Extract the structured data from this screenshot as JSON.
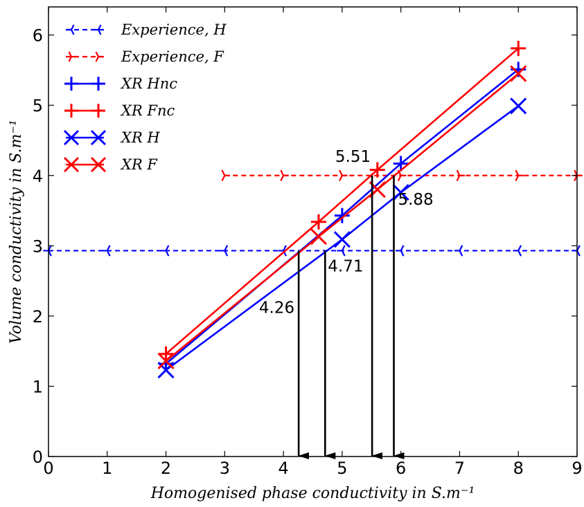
{
  "chart_data": {
    "type": "line",
    "xlabel": "Homogenised phase conductivity in S.m⁻¹",
    "ylabel": "Volume conductivity in S.m⁻¹",
    "xlim": [
      0,
      9
    ],
    "ylim": [
      0,
      6.4
    ],
    "xticks": [
      0,
      1,
      2,
      3,
      4,
      5,
      6,
      7,
      8,
      9
    ],
    "yticks": [
      0,
      1,
      2,
      3,
      4,
      5,
      6
    ],
    "grid": false,
    "legend_position": "top-left",
    "series": [
      {
        "name": "Experience, H",
        "color": "#0000ff",
        "style": "dashed",
        "marker": "tri-left",
        "x": [
          0,
          1,
          2,
          3,
          4,
          5,
          6,
          7,
          8,
          9
        ],
        "y": [
          2.93,
          2.93,
          2.93,
          2.93,
          2.93,
          2.93,
          2.93,
          2.93,
          2.93,
          2.93
        ]
      },
      {
        "name": "Experience, F",
        "color": "#ff0000",
        "style": "dashed",
        "marker": "tri-right",
        "x": [
          3,
          4,
          5,
          6,
          7,
          8,
          9
        ],
        "y": [
          4.0,
          4.0,
          4.0,
          4.0,
          4.0,
          4.0,
          4.0
        ]
      },
      {
        "name": "XR Hnc",
        "color": "#0000ff",
        "style": "solid",
        "marker": "plus",
        "x": [
          2,
          5,
          6,
          8
        ],
        "y": [
          1.32,
          3.43,
          4.17,
          5.51
        ]
      },
      {
        "name": "XR Fnc",
        "color": "#ff0000",
        "style": "solid",
        "marker": "plus",
        "x": [
          2,
          4.6,
          5.6,
          8
        ],
        "y": [
          1.46,
          3.34,
          4.08,
          5.81
        ]
      },
      {
        "name": "XR H",
        "color": "#0000ff",
        "style": "solid",
        "marker": "x",
        "x": [
          2,
          5,
          6,
          8
        ],
        "y": [
          1.23,
          3.09,
          3.76,
          4.99
        ]
      },
      {
        "name": "XR F",
        "color": "#ff0000",
        "style": "solid",
        "marker": "x",
        "x": [
          2,
          4.6,
          5.6,
          8
        ],
        "y": [
          1.36,
          3.13,
          3.8,
          5.45
        ]
      }
    ],
    "annotations": [
      {
        "text": "4.26",
        "x": 4.26,
        "y_top": 2.93
      },
      {
        "text": "4.71",
        "x": 4.71,
        "y_top": 2.93
      },
      {
        "text": "5.51",
        "x": 5.51,
        "y_top": 4.0
      },
      {
        "text": "5.88",
        "x": 5.88,
        "y_top": 4.0
      }
    ]
  }
}
